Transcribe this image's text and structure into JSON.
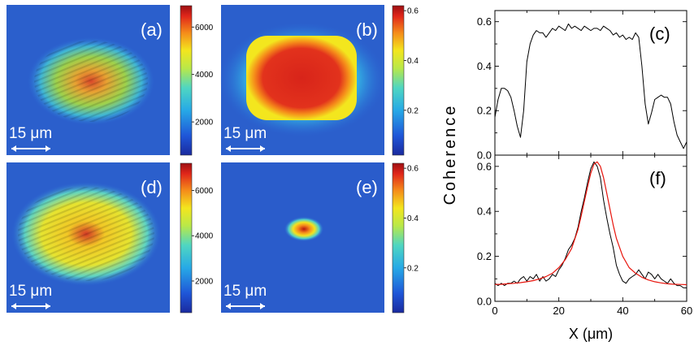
{
  "maps": [
    {
      "id": "a",
      "label": "(a)",
      "scale_bar": "15 μm",
      "colorbar_ticks": [
        "6000",
        "4000",
        "2000"
      ],
      "colorbar_tick_values": [
        6000,
        4000,
        2000
      ],
      "colorbar_range": [
        600,
        6900
      ]
    },
    {
      "id": "b",
      "label": "(b)",
      "scale_bar": "15 μm",
      "colorbar_ticks": [
        "0.6",
        "0.4",
        "0.2"
      ],
      "colorbar_tick_values": [
        0.6,
        0.4,
        0.2
      ],
      "colorbar_range": [
        0.02,
        0.62
      ]
    },
    {
      "id": "d",
      "label": "(d)",
      "scale_bar": "15 μm",
      "colorbar_ticks": [
        "6000",
        "4000",
        "2000"
      ],
      "colorbar_tick_values": [
        6000,
        4000,
        2000
      ],
      "colorbar_range": [
        600,
        7200
      ]
    },
    {
      "id": "e",
      "label": "(e)",
      "scale_bar": "15 μm",
      "colorbar_ticks": [
        "0.6",
        "0.4",
        "0.2"
      ],
      "colorbar_tick_values": [
        0.6,
        0.4,
        0.2
      ],
      "colorbar_range": [
        0.02,
        0.62
      ]
    }
  ],
  "chart_data": [
    {
      "type": "line",
      "label": "(c)",
      "ylabel": "Coherence",
      "xlim": [
        0,
        60
      ],
      "ylim": [
        0,
        0.65
      ],
      "yticks": [
        "0.0",
        "0.2",
        "0.4",
        "0.6"
      ],
      "ytick_values": [
        0,
        0.2,
        0.4,
        0.6
      ],
      "series": [
        {
          "color": "#000000",
          "x": [
            0,
            1,
            2,
            3,
            4,
            5,
            6,
            7,
            8,
            9,
            10,
            11,
            12,
            13,
            14,
            15,
            16,
            17,
            18,
            19,
            20,
            21,
            22,
            23,
            24,
            25,
            26,
            27,
            28,
            29,
            30,
            31,
            32,
            33,
            34,
            35,
            36,
            37,
            38,
            39,
            40,
            41,
            42,
            43,
            44,
            45,
            46,
            47,
            48,
            49,
            50,
            51,
            52,
            53,
            54,
            55,
            56,
            57,
            58,
            59,
            60
          ],
          "y": [
            0.17,
            0.25,
            0.3,
            0.3,
            0.29,
            0.26,
            0.2,
            0.13,
            0.08,
            0.2,
            0.42,
            0.5,
            0.54,
            0.56,
            0.55,
            0.55,
            0.53,
            0.55,
            0.57,
            0.56,
            0.58,
            0.57,
            0.56,
            0.59,
            0.57,
            0.58,
            0.57,
            0.56,
            0.58,
            0.57,
            0.56,
            0.57,
            0.57,
            0.56,
            0.58,
            0.57,
            0.56,
            0.54,
            0.55,
            0.53,
            0.54,
            0.52,
            0.53,
            0.52,
            0.55,
            0.53,
            0.4,
            0.23,
            0.14,
            0.19,
            0.25,
            0.26,
            0.27,
            0.26,
            0.26,
            0.23,
            0.15,
            0.09,
            0.06,
            0.03,
            0.06
          ]
        }
      ]
    },
    {
      "type": "line",
      "label": "(f)",
      "xlabel": "X (μm)",
      "xlim": [
        0,
        60
      ],
      "ylim": [
        0,
        0.65
      ],
      "xticks": [
        "0",
        "20",
        "40",
        "60"
      ],
      "xtick_values": [
        0,
        20,
        40,
        60
      ],
      "yticks": [
        "0.0",
        "0.2",
        "0.4",
        "0.6"
      ],
      "ytick_values": [
        0,
        0.2,
        0.4,
        0.6
      ],
      "series": [
        {
          "color": "#000000",
          "x": [
            0,
            1,
            2,
            3,
            4,
            5,
            6,
            7,
            8,
            9,
            10,
            11,
            12,
            13,
            14,
            15,
            16,
            17,
            18,
            19,
            20,
            21,
            22,
            23,
            24,
            25,
            26,
            27,
            28,
            29,
            30,
            31,
            32,
            33,
            34,
            35,
            36,
            37,
            38,
            39,
            40,
            41,
            42,
            43,
            44,
            45,
            46,
            47,
            48,
            49,
            50,
            51,
            52,
            53,
            54,
            55,
            56,
            57,
            58,
            59,
            60
          ],
          "y": [
            0.08,
            0.07,
            0.08,
            0.07,
            0.08,
            0.08,
            0.09,
            0.08,
            0.1,
            0.11,
            0.09,
            0.11,
            0.1,
            0.12,
            0.09,
            0.11,
            0.09,
            0.1,
            0.12,
            0.11,
            0.14,
            0.16,
            0.19,
            0.23,
            0.25,
            0.28,
            0.33,
            0.4,
            0.46,
            0.53,
            0.59,
            0.62,
            0.6,
            0.55,
            0.45,
            0.37,
            0.3,
            0.24,
            0.16,
            0.12,
            0.09,
            0.08,
            0.1,
            0.11,
            0.12,
            0.14,
            0.12,
            0.1,
            0.13,
            0.12,
            0.1,
            0.12,
            0.1,
            0.09,
            0.08,
            0.1,
            0.08,
            0.07,
            0.07,
            0.06,
            0.06
          ]
        },
        {
          "color": "#e8140c",
          "x": [
            0,
            2,
            4,
            6,
            8,
            10,
            12,
            14,
            16,
            18,
            20,
            22,
            24,
            26,
            27,
            28,
            29,
            30,
            31,
            32,
            33,
            34,
            35,
            36,
            37,
            38,
            40,
            42,
            44,
            46,
            48,
            50,
            52,
            54,
            56,
            58,
            60
          ],
          "y": [
            0.075,
            0.076,
            0.078,
            0.08,
            0.083,
            0.087,
            0.092,
            0.1,
            0.11,
            0.125,
            0.15,
            0.185,
            0.235,
            0.32,
            0.38,
            0.445,
            0.51,
            0.57,
            0.61,
            0.62,
            0.6,
            0.55,
            0.48,
            0.41,
            0.34,
            0.28,
            0.2,
            0.15,
            0.125,
            0.107,
            0.095,
            0.087,
            0.082,
            0.078,
            0.076,
            0.075,
            0.074
          ]
        }
      ]
    }
  ]
}
